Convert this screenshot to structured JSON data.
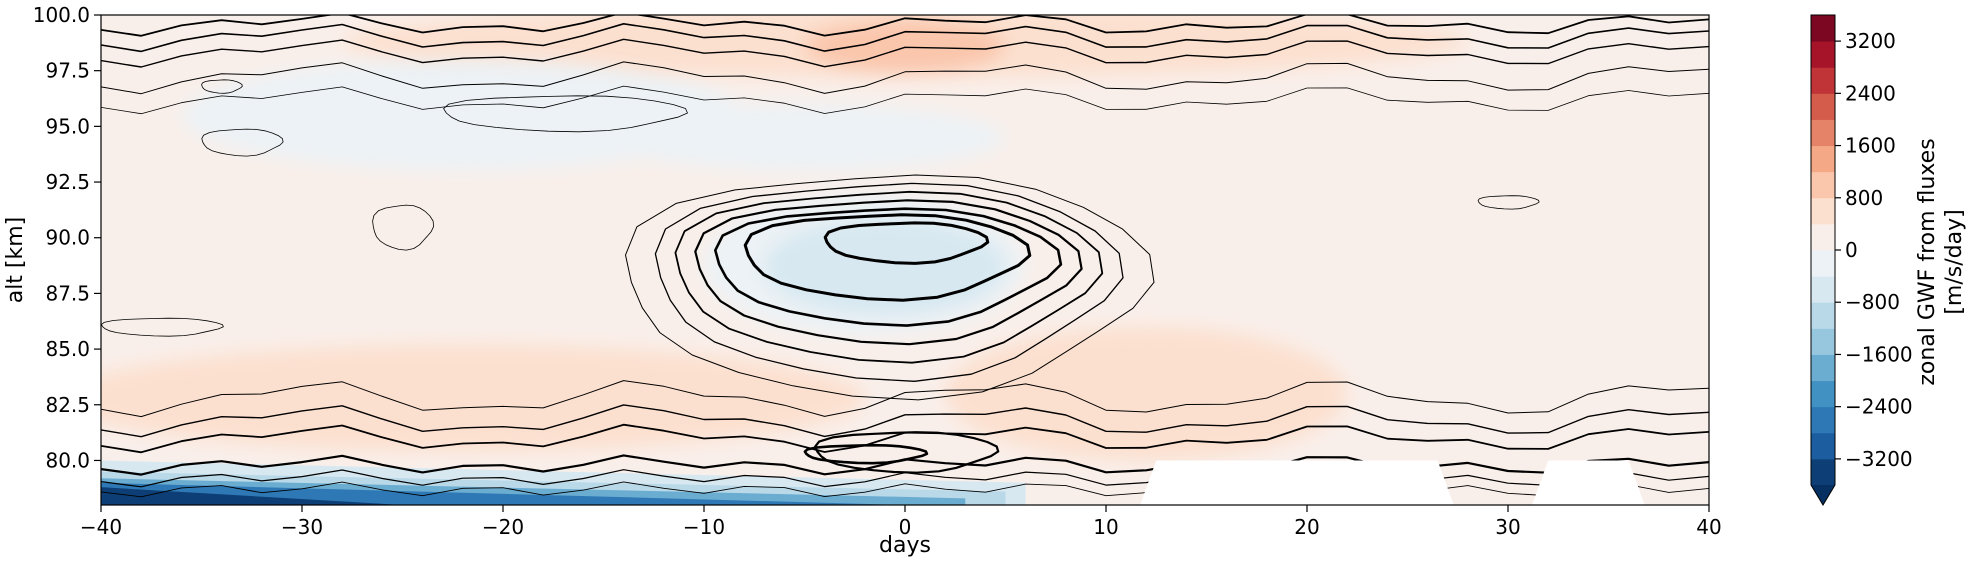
{
  "chart_data": {
    "type": "heatmap",
    "subtype": "filled-contour",
    "title": "",
    "xlabel": "days",
    "ylabel": "alt [km]",
    "xlim": [
      -40,
      40
    ],
    "ylim": [
      78,
      100
    ],
    "x_ticks": [
      -40,
      -30,
      -20,
      -10,
      0,
      10,
      20,
      30,
      40
    ],
    "x_tick_labels": [
      "−40",
      "−30",
      "−20",
      "−10",
      "0",
      "10",
      "20",
      "30",
      "40"
    ],
    "y_ticks": [
      80.0,
      82.5,
      85.0,
      87.5,
      90.0,
      92.5,
      95.0,
      97.5,
      100.0
    ],
    "y_tick_labels": [
      "80.0",
      "82.5",
      "85.0",
      "87.5",
      "90.0",
      "92.5",
      "95.0",
      "97.5",
      "100.0"
    ],
    "colorbar": {
      "label_line1": "zonal GWF from fluxes",
      "label_line2": "[m/s/day]",
      "colormap": "RdBu_r",
      "range": [
        -3600,
        3600
      ],
      "extend": "min",
      "ticks": [
        -3200,
        -2400,
        -1600,
        -800,
        0,
        800,
        1600,
        2400,
        3200
      ],
      "tick_labels": [
        "−3200",
        "−2400",
        "−1600",
        "−800",
        "0",
        "800",
        "1600",
        "2400",
        "3200"
      ]
    },
    "field_features": [
      {
        "feature": "negative core",
        "day": -1,
        "alt_km": 89.5,
        "value": -800
      },
      {
        "feature": "negative near-bottom band",
        "day": -35,
        "alt_km": 78.5,
        "value": -3200
      },
      {
        "feature": "positive upper region",
        "day": 0,
        "alt_km": 98.5,
        "value": 600
      },
      {
        "feature": "positive lower region",
        "day": -20,
        "alt_km": 82.5,
        "value": 500
      },
      {
        "feature": "positive background",
        "day": 25,
        "alt_km": 88,
        "value": 300
      }
    ],
    "missing_data_regions_x_days": [
      [
        12.5,
        26.5
      ],
      [
        32,
        36
      ]
    ],
    "missing_data_top_alt_km": 80.0
  }
}
